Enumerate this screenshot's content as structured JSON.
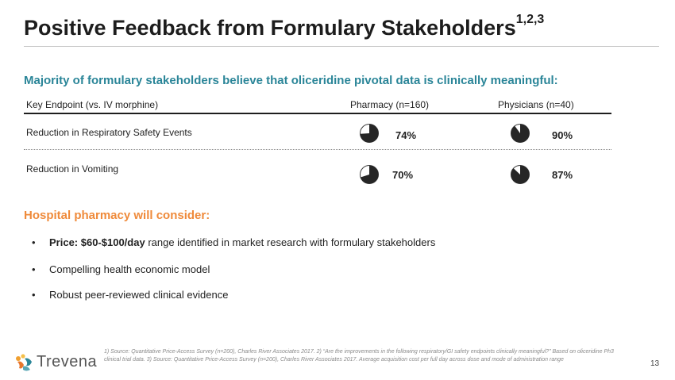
{
  "title": {
    "text": "Positive Feedback from Formulary Stakeholders",
    "superscript": "1,2,3"
  },
  "subtitle": "Majority of formulary stakeholders believe that oliceridine pivotal data is clinically meaningful:",
  "table": {
    "headers": {
      "endpoint": "Key Endpoint (vs. IV morphine)",
      "pharmacy": "Pharmacy (n=160)",
      "physicians": "Physicians (n=40)"
    },
    "rows": [
      {
        "label": "Reduction in Respiratory Safety Events",
        "pharmacy": "74%",
        "physicians": "90%",
        "pharmacy_value": 74,
        "physicians_value": 90
      },
      {
        "label": "Reduction in Vomiting",
        "pharmacy": "70%",
        "physicians": "87%",
        "pharmacy_value": 70,
        "physicians_value": 87
      }
    ]
  },
  "consider": {
    "heading": "Hospital pharmacy will consider:",
    "bullets": [
      {
        "bold": "Price: $60-$100/day",
        "text": " range identified in market research with formulary stakeholders"
      },
      {
        "bold": "",
        "text": "Compelling health economic model"
      },
      {
        "bold": "",
        "text": "Robust peer-reviewed clinical evidence"
      }
    ],
    "bullet_char": "•"
  },
  "footer": {
    "logo_text": "Trevena",
    "note": "1) Source: Quantitative Price-Access Survey (n=200), Charles River Associates 2017. 2) “Are the improvements in the following respiratory/GI safety endpoints clinically meaningful?” Based on oliceridine Ph3 clinical trial data. 3) Source: Quantitative Price-Access Survey (n=200), Charles River Associates 2017. Average acquisition cost per full day across dose and mode of administration range",
    "page_number": "13"
  },
  "colors": {
    "teal": "#2a8598",
    "orange": "#ef8a3a",
    "pie_fill": "#262626"
  }
}
